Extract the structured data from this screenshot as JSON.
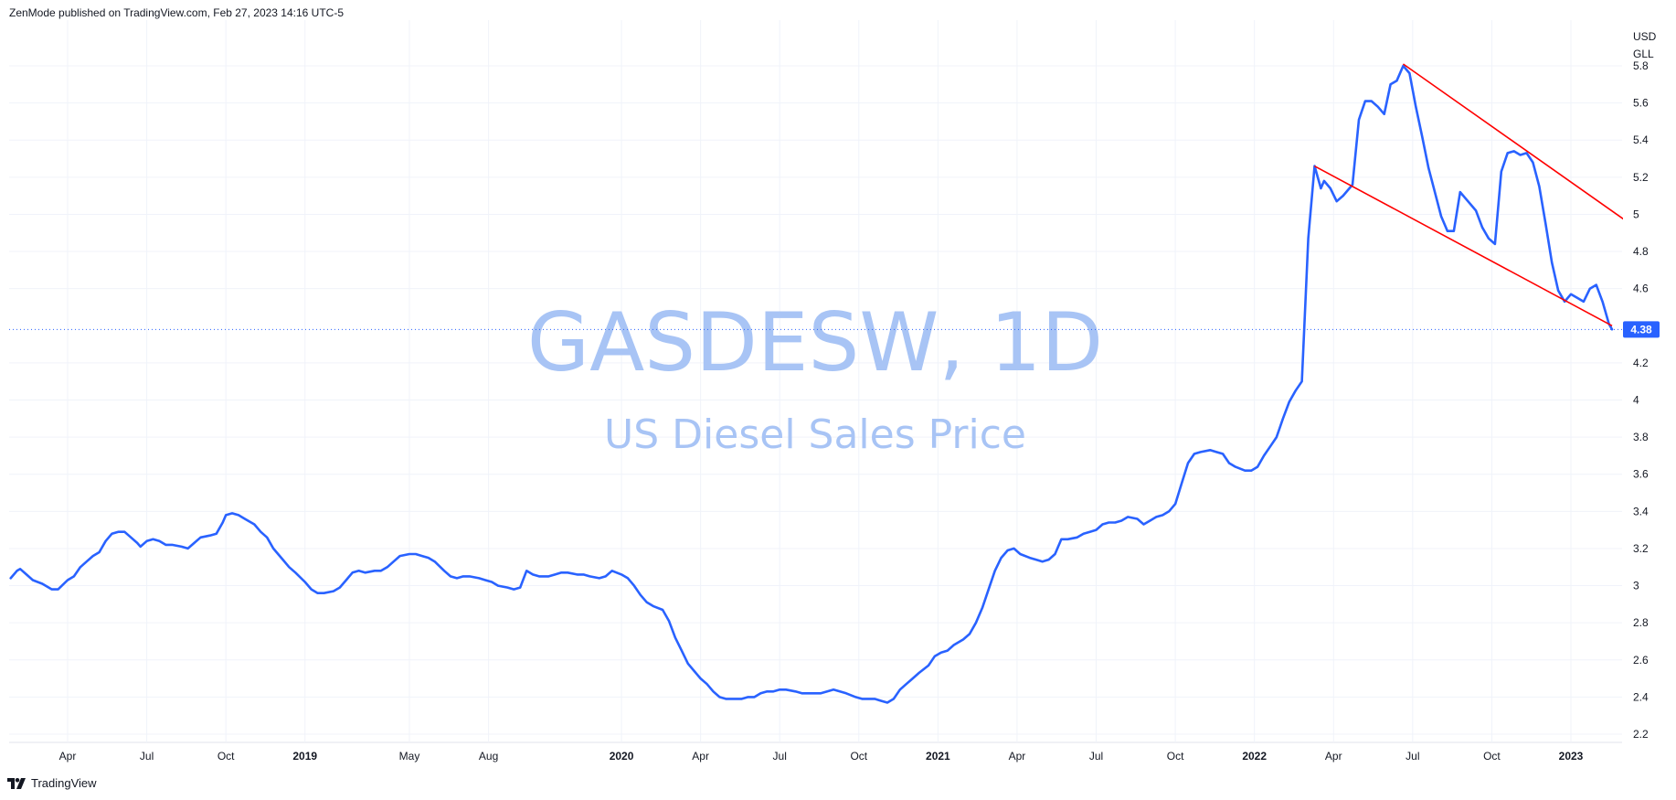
{
  "header": {
    "publish_note": "ZenMode published on TradingView.com, Feb 27, 2023 14:16 UTC-5"
  },
  "footer": {
    "brand": "TradingView"
  },
  "colors": {
    "series": "#2962ff",
    "trendline": "#ff0000",
    "grid": "#f0f3fa",
    "watermark": "#a8c4f5",
    "price_tag": "#2962ff"
  },
  "chart_data": {
    "type": "line",
    "title": "GASDESW, 1D",
    "subtitle": "US Diesel Sales Price",
    "currency": [
      "USD",
      "GLL"
    ],
    "last_value_label": "4.38",
    "last_value": 4.38,
    "ylim": [
      2.15,
      5.85
    ],
    "y_ticks": [
      "2.2",
      "2.4",
      "2.6",
      "2.8",
      "3",
      "3.2",
      "3.4",
      "3.6",
      "3.8",
      "4",
      "4.2",
      "4.6",
      "4.8",
      "5",
      "5.2",
      "5.4",
      "5.6",
      "5.8"
    ],
    "x_ticks": [
      {
        "label": "Apr",
        "t": 2018.25,
        "bold": false
      },
      {
        "label": "Jul",
        "t": 2018.5,
        "bold": false
      },
      {
        "label": "Oct",
        "t": 2018.75,
        "bold": false
      },
      {
        "label": "2019",
        "t": 2019.0,
        "bold": true
      },
      {
        "label": "May",
        "t": 2019.33,
        "bold": false
      },
      {
        "label": "Aug",
        "t": 2019.58,
        "bold": false
      },
      {
        "label": "2020",
        "t": 2020.0,
        "bold": true
      },
      {
        "label": "Apr",
        "t": 2020.25,
        "bold": false
      },
      {
        "label": "Jul",
        "t": 2020.5,
        "bold": false
      },
      {
        "label": "Oct",
        "t": 2020.75,
        "bold": false
      },
      {
        "label": "2021",
        "t": 2021.0,
        "bold": true
      },
      {
        "label": "Apr",
        "t": 2021.25,
        "bold": false
      },
      {
        "label": "Jul",
        "t": 2021.5,
        "bold": false
      },
      {
        "label": "Oct",
        "t": 2021.75,
        "bold": false
      },
      {
        "label": "2022",
        "t": 2022.0,
        "bold": true
      },
      {
        "label": "Apr",
        "t": 2022.25,
        "bold": false
      },
      {
        "label": "Jul",
        "t": 2022.5,
        "bold": false
      },
      {
        "label": "Oct",
        "t": 2022.75,
        "bold": false
      },
      {
        "label": "2023",
        "t": 2023.0,
        "bold": true
      }
    ],
    "x_range": [
      2018.07,
      2023.2
    ],
    "series": [
      {
        "name": "US Diesel Sales Price",
        "points": [
          [
            2018.07,
            3.04
          ],
          [
            2018.09,
            3.08
          ],
          [
            2018.1,
            3.09
          ],
          [
            2018.12,
            3.06
          ],
          [
            2018.14,
            3.03
          ],
          [
            2018.17,
            3.01
          ],
          [
            2018.2,
            2.98
          ],
          [
            2018.22,
            2.98
          ],
          [
            2018.25,
            3.03
          ],
          [
            2018.27,
            3.05
          ],
          [
            2018.29,
            3.1
          ],
          [
            2018.31,
            3.13
          ],
          [
            2018.33,
            3.16
          ],
          [
            2018.35,
            3.18
          ],
          [
            2018.37,
            3.24
          ],
          [
            2018.39,
            3.28
          ],
          [
            2018.41,
            3.29
          ],
          [
            2018.43,
            3.29
          ],
          [
            2018.45,
            3.26
          ],
          [
            2018.47,
            3.23
          ],
          [
            2018.48,
            3.21
          ],
          [
            2018.5,
            3.24
          ],
          [
            2018.52,
            3.25
          ],
          [
            2018.54,
            3.24
          ],
          [
            2018.56,
            3.22
          ],
          [
            2018.58,
            3.22
          ],
          [
            2018.61,
            3.21
          ],
          [
            2018.63,
            3.2
          ],
          [
            2018.65,
            3.23
          ],
          [
            2018.67,
            3.26
          ],
          [
            2018.7,
            3.27
          ],
          [
            2018.72,
            3.28
          ],
          [
            2018.74,
            3.34
          ],
          [
            2018.75,
            3.38
          ],
          [
            2018.77,
            3.39
          ],
          [
            2018.79,
            3.38
          ],
          [
            2018.81,
            3.36
          ],
          [
            2018.84,
            3.33
          ],
          [
            2018.86,
            3.29
          ],
          [
            2018.88,
            3.26
          ],
          [
            2018.9,
            3.2
          ],
          [
            2018.93,
            3.14
          ],
          [
            2018.95,
            3.1
          ],
          [
            2018.97,
            3.07
          ],
          [
            2019.0,
            3.02
          ],
          [
            2019.02,
            2.98
          ],
          [
            2019.04,
            2.96
          ],
          [
            2019.06,
            2.96
          ],
          [
            2019.09,
            2.97
          ],
          [
            2019.11,
            2.99
          ],
          [
            2019.13,
            3.03
          ],
          [
            2019.15,
            3.07
          ],
          [
            2019.17,
            3.08
          ],
          [
            2019.19,
            3.07
          ],
          [
            2019.22,
            3.08
          ],
          [
            2019.24,
            3.08
          ],
          [
            2019.26,
            3.1
          ],
          [
            2019.28,
            3.13
          ],
          [
            2019.3,
            3.16
          ],
          [
            2019.33,
            3.17
          ],
          [
            2019.35,
            3.17
          ],
          [
            2019.37,
            3.16
          ],
          [
            2019.39,
            3.15
          ],
          [
            2019.41,
            3.13
          ],
          [
            2019.44,
            3.08
          ],
          [
            2019.46,
            3.05
          ],
          [
            2019.48,
            3.04
          ],
          [
            2019.5,
            3.05
          ],
          [
            2019.52,
            3.05
          ],
          [
            2019.55,
            3.04
          ],
          [
            2019.57,
            3.03
          ],
          [
            2019.59,
            3.02
          ],
          [
            2019.61,
            3.0
          ],
          [
            2019.64,
            2.99
          ],
          [
            2019.66,
            2.98
          ],
          [
            2019.68,
            2.99
          ],
          [
            2019.7,
            3.08
          ],
          [
            2019.72,
            3.06
          ],
          [
            2019.74,
            3.05
          ],
          [
            2019.77,
            3.05
          ],
          [
            2019.79,
            3.06
          ],
          [
            2019.81,
            3.07
          ],
          [
            2019.83,
            3.07
          ],
          [
            2019.86,
            3.06
          ],
          [
            2019.88,
            3.06
          ],
          [
            2019.9,
            3.05
          ],
          [
            2019.93,
            3.04
          ],
          [
            2019.95,
            3.05
          ],
          [
            2019.97,
            3.08
          ],
          [
            2020.0,
            3.06
          ],
          [
            2020.02,
            3.04
          ],
          [
            2020.04,
            3.0
          ],
          [
            2020.06,
            2.95
          ],
          [
            2020.08,
            2.91
          ],
          [
            2020.1,
            2.89
          ],
          [
            2020.13,
            2.87
          ],
          [
            2020.15,
            2.81
          ],
          [
            2020.17,
            2.72
          ],
          [
            2020.19,
            2.65
          ],
          [
            2020.21,
            2.58
          ],
          [
            2020.23,
            2.54
          ],
          [
            2020.25,
            2.5
          ],
          [
            2020.27,
            2.47
          ],
          [
            2020.29,
            2.43
          ],
          [
            2020.31,
            2.4
          ],
          [
            2020.33,
            2.39
          ],
          [
            2020.36,
            2.39
          ],
          [
            2020.38,
            2.39
          ],
          [
            2020.4,
            2.4
          ],
          [
            2020.42,
            2.4
          ],
          [
            2020.44,
            2.42
          ],
          [
            2020.46,
            2.43
          ],
          [
            2020.48,
            2.43
          ],
          [
            2020.5,
            2.44
          ],
          [
            2020.52,
            2.44
          ],
          [
            2020.55,
            2.43
          ],
          [
            2020.57,
            2.42
          ],
          [
            2020.59,
            2.42
          ],
          [
            2020.61,
            2.42
          ],
          [
            2020.63,
            2.42
          ],
          [
            2020.65,
            2.43
          ],
          [
            2020.67,
            2.44
          ],
          [
            2020.69,
            2.43
          ],
          [
            2020.71,
            2.42
          ],
          [
            2020.74,
            2.4
          ],
          [
            2020.76,
            2.39
          ],
          [
            2020.78,
            2.39
          ],
          [
            2020.8,
            2.39
          ],
          [
            2020.82,
            2.38
          ],
          [
            2020.84,
            2.37
          ],
          [
            2020.86,
            2.39
          ],
          [
            2020.88,
            2.44
          ],
          [
            2020.9,
            2.47
          ],
          [
            2020.92,
            2.5
          ],
          [
            2020.94,
            2.53
          ],
          [
            2020.97,
            2.57
          ],
          [
            2020.99,
            2.62
          ],
          [
            2021.01,
            2.64
          ],
          [
            2021.03,
            2.65
          ],
          [
            2021.05,
            2.68
          ],
          [
            2021.08,
            2.71
          ],
          [
            2021.1,
            2.74
          ],
          [
            2021.12,
            2.8
          ],
          [
            2021.14,
            2.88
          ],
          [
            2021.16,
            2.98
          ],
          [
            2021.18,
            3.08
          ],
          [
            2021.2,
            3.15
          ],
          [
            2021.22,
            3.19
          ],
          [
            2021.24,
            3.2
          ],
          [
            2021.26,
            3.17
          ],
          [
            2021.29,
            3.15
          ],
          [
            2021.31,
            3.14
          ],
          [
            2021.33,
            3.13
          ],
          [
            2021.35,
            3.14
          ],
          [
            2021.37,
            3.17
          ],
          [
            2021.39,
            3.25
          ],
          [
            2021.41,
            3.25
          ],
          [
            2021.44,
            3.26
          ],
          [
            2021.46,
            3.28
          ],
          [
            2021.48,
            3.29
          ],
          [
            2021.5,
            3.3
          ],
          [
            2021.52,
            3.33
          ],
          [
            2021.54,
            3.34
          ],
          [
            2021.56,
            3.34
          ],
          [
            2021.58,
            3.35
          ],
          [
            2021.6,
            3.37
          ],
          [
            2021.63,
            3.36
          ],
          [
            2021.65,
            3.33
          ],
          [
            2021.67,
            3.35
          ],
          [
            2021.69,
            3.37
          ],
          [
            2021.71,
            3.38
          ],
          [
            2021.73,
            3.4
          ],
          [
            2021.75,
            3.44
          ],
          [
            2021.77,
            3.55
          ],
          [
            2021.79,
            3.66
          ],
          [
            2021.81,
            3.71
          ],
          [
            2021.83,
            3.72
          ],
          [
            2021.86,
            3.73
          ],
          [
            2021.88,
            3.72
          ],
          [
            2021.9,
            3.71
          ],
          [
            2021.92,
            3.66
          ],
          [
            2021.94,
            3.64
          ],
          [
            2021.97,
            3.62
          ],
          [
            2021.99,
            3.62
          ],
          [
            2022.01,
            3.64
          ],
          [
            2022.03,
            3.7
          ],
          [
            2022.05,
            3.75
          ],
          [
            2022.07,
            3.8
          ],
          [
            2022.09,
            3.9
          ],
          [
            2022.11,
            3.99
          ],
          [
            2022.13,
            4.05
          ],
          [
            2022.15,
            4.1
          ],
          [
            2022.17,
            4.87
          ],
          [
            2022.19,
            5.26
          ],
          [
            2022.21,
            5.14
          ],
          [
            2022.22,
            5.18
          ],
          [
            2022.24,
            5.14
          ],
          [
            2022.26,
            5.07
          ],
          [
            2022.28,
            5.1
          ],
          [
            2022.31,
            5.16
          ],
          [
            2022.33,
            5.51
          ],
          [
            2022.35,
            5.61
          ],
          [
            2022.37,
            5.61
          ],
          [
            2022.39,
            5.58
          ],
          [
            2022.41,
            5.54
          ],
          [
            2022.43,
            5.7
          ],
          [
            2022.45,
            5.72
          ],
          [
            2022.47,
            5.8
          ],
          [
            2022.49,
            5.76
          ],
          [
            2022.51,
            5.58
          ],
          [
            2022.53,
            5.42
          ],
          [
            2022.55,
            5.25
          ],
          [
            2022.57,
            5.12
          ],
          [
            2022.59,
            4.99
          ],
          [
            2022.61,
            4.91
          ],
          [
            2022.63,
            4.91
          ],
          [
            2022.65,
            5.12
          ],
          [
            2022.67,
            5.08
          ],
          [
            2022.7,
            5.02
          ],
          [
            2022.72,
            4.93
          ],
          [
            2022.74,
            4.87
          ],
          [
            2022.76,
            4.84
          ],
          [
            2022.78,
            5.23
          ],
          [
            2022.8,
            5.33
          ],
          [
            2022.82,
            5.34
          ],
          [
            2022.84,
            5.32
          ],
          [
            2022.86,
            5.33
          ],
          [
            2022.88,
            5.28
          ],
          [
            2022.9,
            5.15
          ],
          [
            2022.92,
            4.95
          ],
          [
            2022.94,
            4.74
          ],
          [
            2022.96,
            4.59
          ],
          [
            2022.98,
            4.53
          ],
          [
            2023.0,
            4.57
          ],
          [
            2023.02,
            4.55
          ],
          [
            2023.04,
            4.53
          ],
          [
            2023.06,
            4.6
          ],
          [
            2023.08,
            4.62
          ],
          [
            2023.1,
            4.53
          ],
          [
            2023.12,
            4.41
          ],
          [
            2023.13,
            4.38
          ]
        ]
      }
    ],
    "trendlines": [
      {
        "from": [
          2022.47,
          5.81
        ],
        "to": [
          2023.17,
          4.97
        ]
      },
      {
        "from": [
          2022.19,
          5.26
        ],
        "to": [
          2023.13,
          4.4
        ]
      }
    ]
  }
}
